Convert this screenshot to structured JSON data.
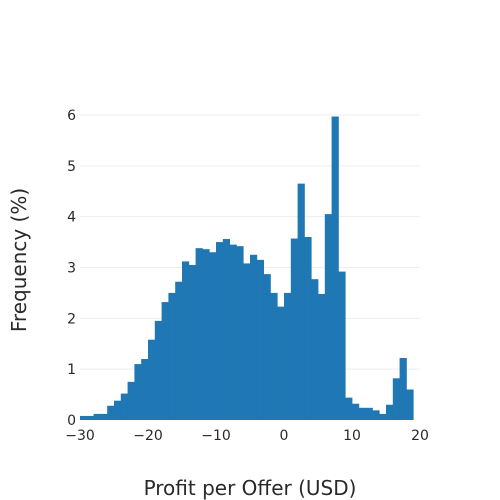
{
  "chart_data": {
    "type": "bar",
    "subtype": "histogram",
    "xlabel": "Profit per Offer (USD)",
    "ylabel": "Frequency (%)",
    "xlim": [
      -30,
      20
    ],
    "ylim": [
      0,
      6
    ],
    "x_ticks": [
      -30,
      -20,
      -10,
      0,
      10,
      20
    ],
    "x_tick_labels": [
      "−30",
      "−20",
      "−10",
      "0",
      "10",
      "20"
    ],
    "y_ticks": [
      0,
      1,
      2,
      3,
      4,
      5,
      6
    ],
    "y_tick_labels": [
      "0",
      "1",
      "2",
      "3",
      "4",
      "5",
      "6"
    ],
    "grid": true,
    "bar_color": "#1f77b4",
    "bin_width": 1,
    "bin_start": -30,
    "values": [
      0.08,
      0.08,
      0.12,
      0.12,
      0.28,
      0.38,
      0.52,
      0.75,
      1.1,
      1.2,
      1.58,
      1.95,
      2.32,
      2.5,
      2.72,
      3.12,
      3.05,
      3.38,
      3.36,
      3.3,
      3.5,
      3.56,
      3.45,
      3.42,
      3.08,
      3.25,
      3.15,
      2.87,
      2.5,
      2.23,
      2.5,
      3.57,
      4.65,
      3.6,
      2.77,
      2.48,
      4.05,
      5.97,
      2.92,
      0.44,
      0.32,
      0.24,
      0.24,
      0.19,
      0.12,
      0.3,
      0.82,
      1.22,
      0.6
    ]
  }
}
